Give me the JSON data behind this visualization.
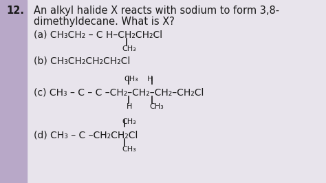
{
  "bg_color": "#e8e4ec",
  "panel_color": "#f0eeee",
  "text_color": "#1a1a1a",
  "title_num": "12.",
  "title_text1": "An alkyl halide X reacts with sodium to form 3,8-",
  "title_text2": "dimethyldecane. What is X?",
  "fs_title": 10.5,
  "fs_main": 10.0,
  "fs_small": 8.0
}
